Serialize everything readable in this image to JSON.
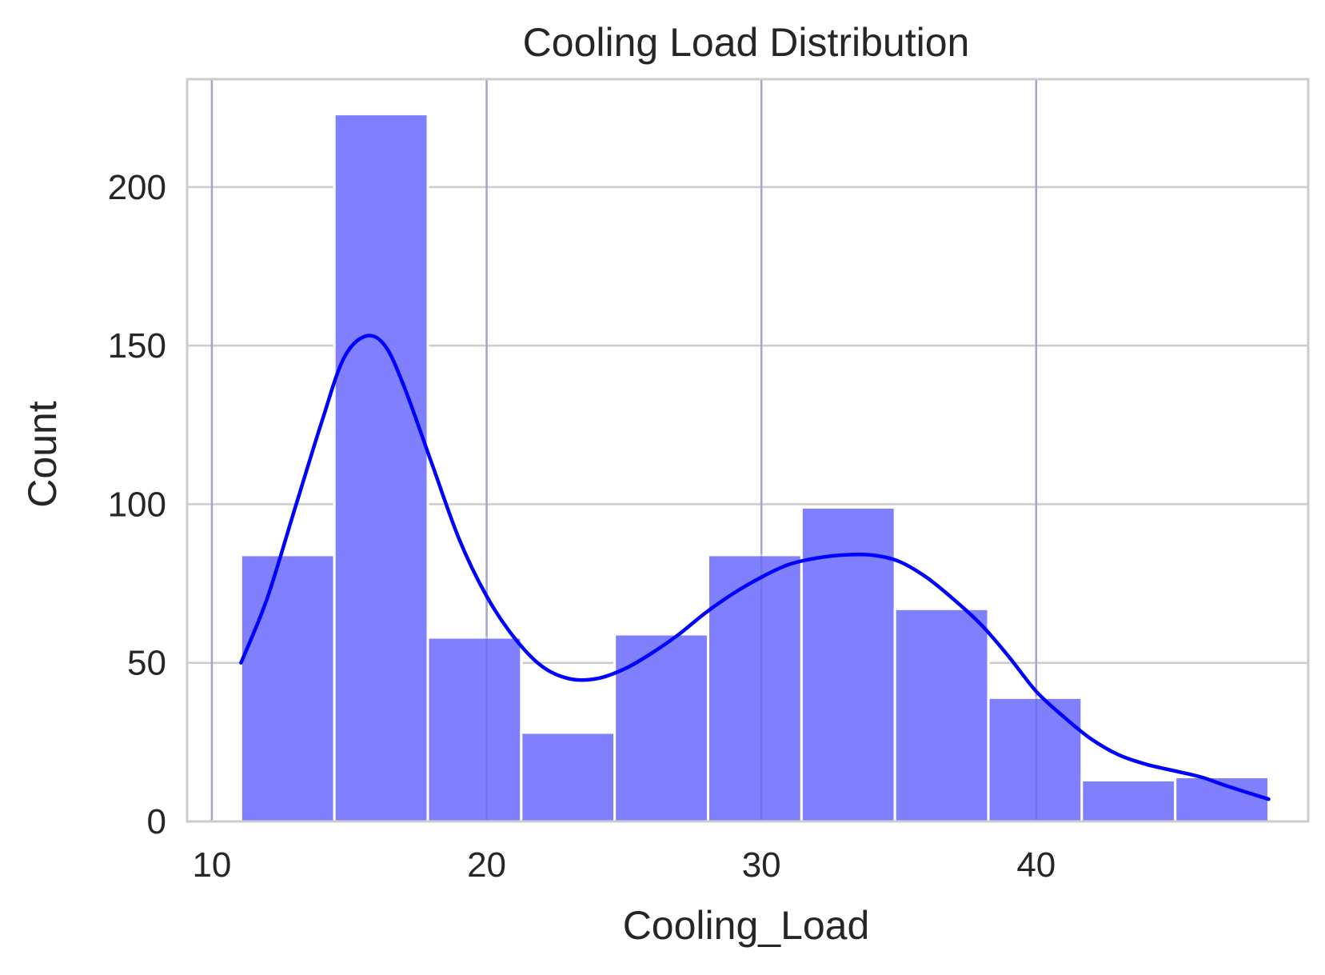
{
  "chart_data": {
    "type": "bar",
    "title": "Cooling Load Distribution",
    "xlabel": "Cooling_Load",
    "ylabel": "Count",
    "xlim": [
      9.1,
      49.9
    ],
    "ylim": [
      0,
      234
    ],
    "xticks": [
      10,
      20,
      30,
      40
    ],
    "yticks": [
      0,
      50,
      100,
      150,
      200
    ],
    "grid": true,
    "legend": "none",
    "colors": {
      "bar": "#8080ff",
      "bar_edge": "#ffffff",
      "kde": "#0000ff",
      "grid": "#cccccc",
      "spine": "#cccccc"
    },
    "bins": [
      {
        "x0": 11.06,
        "x1": 14.46,
        "count": 84
      },
      {
        "x0": 14.46,
        "x1": 17.86,
        "count": 223
      },
      {
        "x0": 17.86,
        "x1": 21.26,
        "count": 58
      },
      {
        "x0": 21.26,
        "x1": 24.66,
        "count": 28
      },
      {
        "x0": 24.66,
        "x1": 28.06,
        "count": 59
      },
      {
        "x0": 28.06,
        "x1": 31.46,
        "count": 84
      },
      {
        "x0": 31.46,
        "x1": 34.86,
        "count": 99
      },
      {
        "x0": 34.86,
        "x1": 38.26,
        "count": 67
      },
      {
        "x0": 38.26,
        "x1": 41.66,
        "count": 39
      },
      {
        "x0": 41.66,
        "x1": 45.06,
        "count": 13
      },
      {
        "x0": 45.06,
        "x1": 48.46,
        "count": 14
      }
    ],
    "kde": {
      "x": [
        11.06,
        12.0,
        13.0,
        14.0,
        14.8,
        15.6,
        16.3,
        17.0,
        18.0,
        19.0,
        20.0,
        21.0,
        22.0,
        23.0,
        24.0,
        25.0,
        26.0,
        27.0,
        28.0,
        29.0,
        30.0,
        31.0,
        32.0,
        33.0,
        34.0,
        35.0,
        36.0,
        37.0,
        38.0,
        39.0,
        40.0,
        41.0,
        42.0,
        43.0,
        44.0,
        45.0,
        46.0,
        47.0,
        48.46
      ],
      "y": [
        50,
        70,
        98,
        126,
        146,
        153,
        150,
        137,
        113,
        89,
        71,
        58,
        49,
        45,
        45,
        48,
        53,
        59,
        66,
        72,
        77,
        81,
        83,
        84,
        84,
        82,
        77,
        70,
        62,
        52,
        41,
        33,
        26,
        21,
        18,
        16,
        14,
        11,
        7
      ]
    }
  }
}
